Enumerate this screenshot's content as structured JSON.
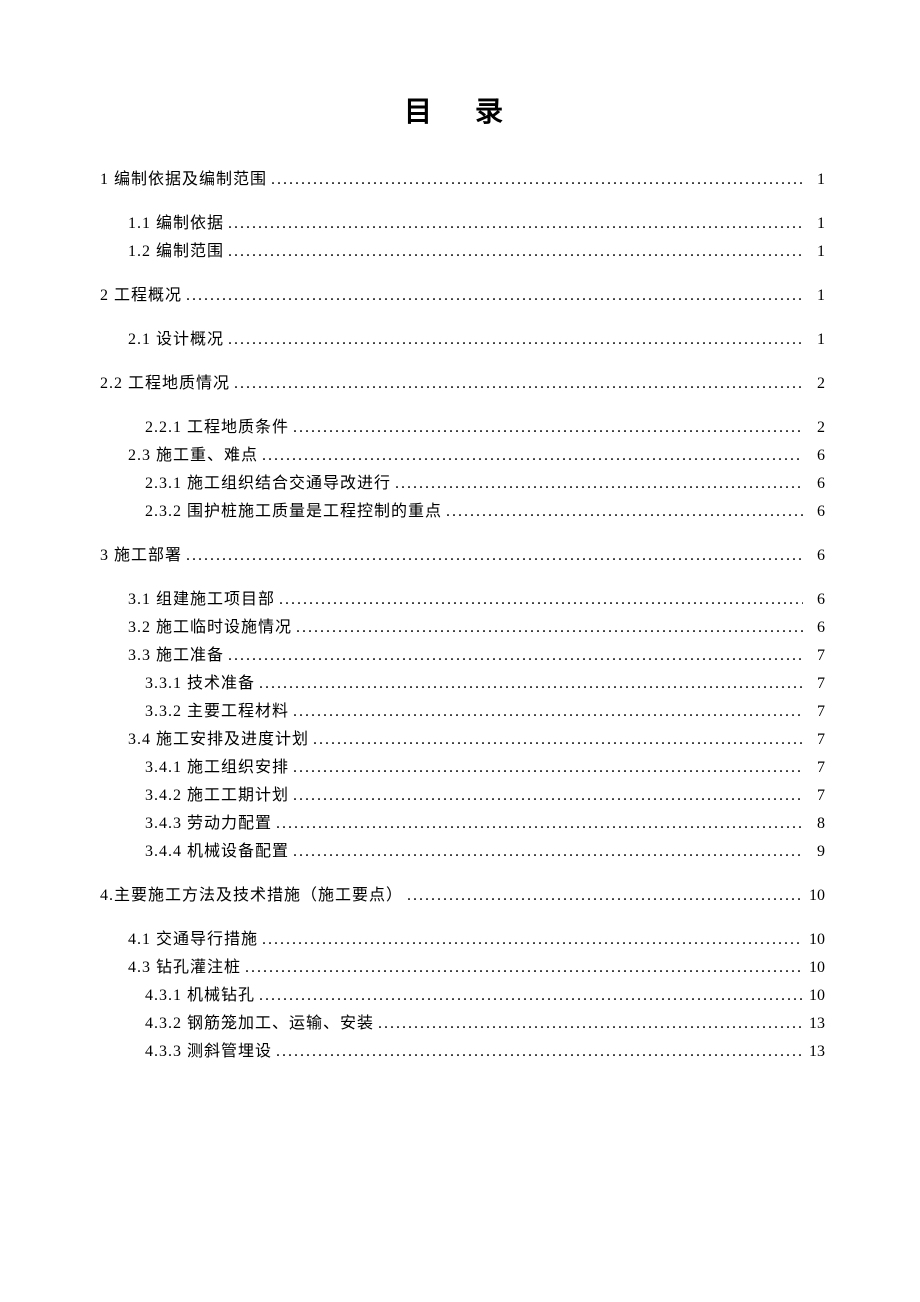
{
  "doc": {
    "title": "目 录",
    "toc": [
      {
        "label": "1 编制依据及编制范围",
        "page": "1",
        "level": 1
      },
      {
        "label": "1.1 编制依据",
        "page": "1",
        "level": 2
      },
      {
        "label": "1.2 编制范围",
        "page": "1",
        "level": 2
      },
      {
        "label": "2 工程概况",
        "page": "1",
        "level": 1
      },
      {
        "label": "2.1 设计概况",
        "page": "1",
        "level": 2
      },
      {
        "label": "2.2 工程地质情况",
        "page": "2",
        "level": 1
      },
      {
        "label": "2.2.1 工程地质条件",
        "page": "2",
        "level": 3
      },
      {
        "label": "2.3 施工重、难点",
        "page": "6",
        "level": 2
      },
      {
        "label": "2.3.1 施工组织结合交通导改进行",
        "page": "6",
        "level": 3
      },
      {
        "label": "2.3.2 围护桩施工质量是工程控制的重点",
        "page": "6",
        "level": 3
      },
      {
        "label": "3 施工部署",
        "page": "6",
        "level": 1
      },
      {
        "label": "3.1 组建施工项目部",
        "page": "6",
        "level": 2
      },
      {
        "label": "3.2 施工临时设施情况",
        "page": "6",
        "level": 2
      },
      {
        "label": "3.3 施工准备",
        "page": "7",
        "level": 2
      },
      {
        "label": "3.3.1 技术准备",
        "page": "7",
        "level": 3
      },
      {
        "label": "3.3.2 主要工程材料",
        "page": "7",
        "level": 3
      },
      {
        "label": "3.4 施工安排及进度计划",
        "page": "7",
        "level": 2
      },
      {
        "label": "3.4.1 施工组织安排",
        "page": "7",
        "level": 3
      },
      {
        "label": "3.4.2 施工工期计划",
        "page": "7",
        "level": 3
      },
      {
        "label": "3.4.3 劳动力配置",
        "page": "8",
        "level": 3
      },
      {
        "label": "3.4.4 机械设备配置",
        "page": "9",
        "level": 3
      },
      {
        "label": "4.主要施工方法及技术措施（施工要点）",
        "page": "10",
        "level": 1
      },
      {
        "label": "4.1 交通导行措施",
        "page": "10",
        "level": 2
      },
      {
        "label": "4.3 钻孔灌注桩",
        "page": "10",
        "level": 2
      },
      {
        "label": "4.3.1 机械钻孔",
        "page": "10",
        "level": 3
      },
      {
        "label": "4.3.2 钢筋笼加工、运输、安装",
        "page": "13",
        "level": 3
      },
      {
        "label": "4.3.3 测斜管埋设",
        "page": "13",
        "level": 3
      }
    ],
    "text_color": "#000000",
    "background_color": "#ffffff"
  }
}
